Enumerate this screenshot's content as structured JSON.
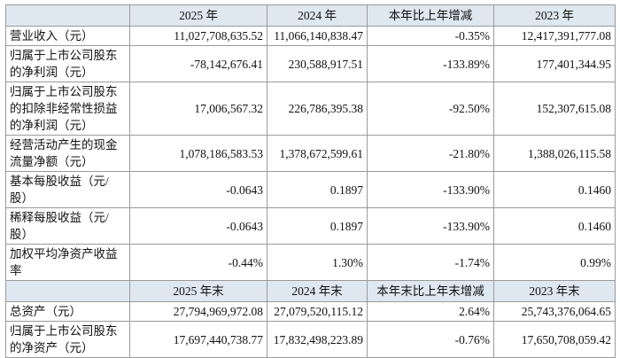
{
  "table": {
    "header": [
      "2025 年",
      "2024 年",
      "本年比上年增减",
      "2023 年"
    ],
    "rows": [
      [
        "营业收入（元）",
        "11,027,708,635.52",
        "11,066,140,838.47",
        "-0.35%",
        "12,417,391,777.08"
      ],
      [
        "归属于上市公司股东的净利润（元）",
        "-78,142,676.41",
        "230,588,917.51",
        "-133.89%",
        "177,401,344.95"
      ],
      [
        "归属于上市公司股东的扣除非经常性损益的净利润（元）",
        "17,006,567.32",
        "226,786,395.38",
        "-92.50%",
        "152,307,615.08"
      ],
      [
        "经营活动产生的现金流量净额（元）",
        "1,078,186,583.53",
        "1,378,672,599.61",
        "-21.80%",
        "1,388,026,115.58"
      ],
      [
        "基本每股收益（元/股）",
        "-0.0643",
        "0.1897",
        "-133.90%",
        "0.1460"
      ],
      [
        "稀释每股收益（元/股）",
        "-0.0643",
        "0.1897",
        "-133.90%",
        "0.1460"
      ],
      [
        "加权平均净资产收益率",
        "-0.44%",
        "1.30%",
        "-1.74%",
        "0.99%"
      ]
    ],
    "header2": [
      "2025 年末",
      "2024 年末",
      "本年末比上年末增减",
      "2023 年末"
    ],
    "rows2": [
      [
        "总资产（元）",
        "27,794,969,972.08",
        "27,079,520,115.12",
        "2.64%",
        "25,743,376,064.65"
      ],
      [
        "归属于上市公司股东的净资产（元）",
        "17,697,440,738.77",
        "17,832,498,223.89",
        "-0.76%",
        "17,650,708,059.42"
      ]
    ]
  }
}
